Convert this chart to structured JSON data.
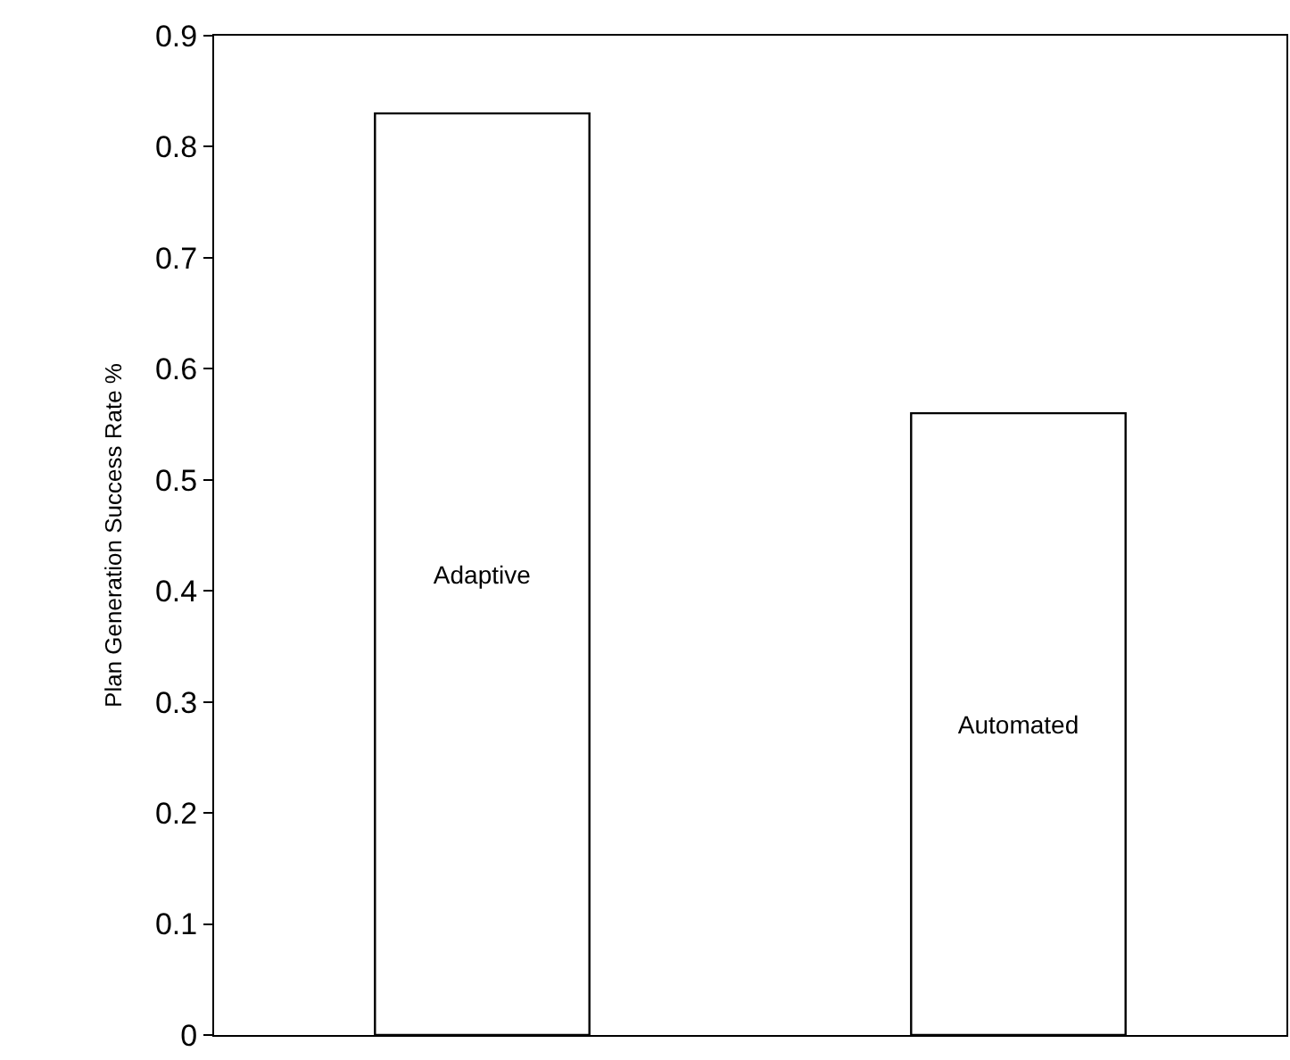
{
  "chart_data": {
    "type": "bar",
    "ylabel": "Plan Generation Success Rate %",
    "categories": [
      "Adaptive",
      "Automated"
    ],
    "values": [
      0.83,
      0.56
    ],
    "color": "#ffffff",
    "ylim": [
      0,
      0.9
    ],
    "yticks": [
      0,
      0.1,
      0.2,
      0.3,
      0.4,
      0.5,
      0.6,
      0.7,
      0.8,
      0.9
    ],
    "tick_labels": "y"
  }
}
